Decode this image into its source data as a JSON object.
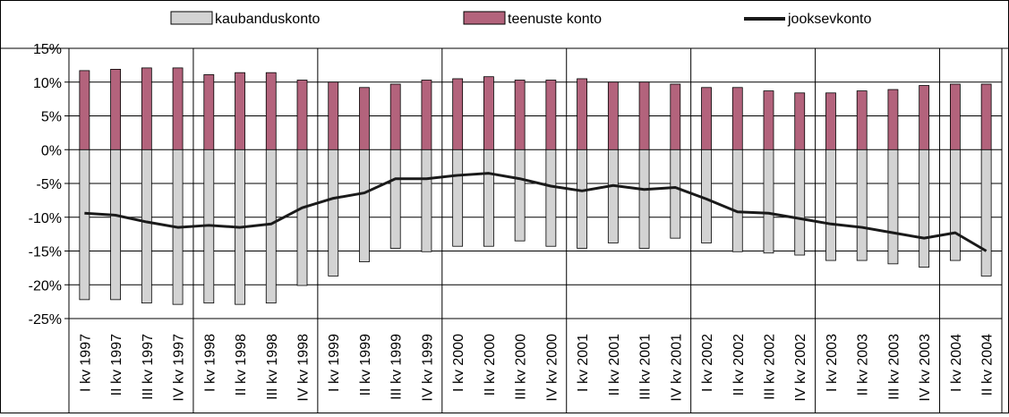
{
  "chart_data": {
    "type": "bar",
    "title": "",
    "xlabel": "",
    "ylabel": "",
    "ylim": [
      -0.25,
      0.15
    ],
    "y_ticks": [
      0.15,
      0.1,
      0.05,
      0.0,
      -0.05,
      -0.1,
      -0.15,
      -0.2,
      -0.25
    ],
    "y_tick_labels": [
      "15%",
      "10%",
      "5%",
      "0%",
      "-5%",
      "-10%",
      "-15%",
      "-20%",
      "-25%"
    ],
    "grid": true,
    "legend_position": "top",
    "categories": [
      "I kv 1997",
      "II kv 1997",
      "III kv 1997",
      "IV kv 1997",
      "I kv 1998",
      "II kv 1998",
      "III kv 1998",
      "IV kv 1998",
      "I kv 1999",
      "II kv 1999",
      "III kv 1999",
      "IV kv 1999",
      "I kv 2000",
      "II kv 2000",
      "III kv 2000",
      "IV kv 2000",
      "I kv 2001",
      "II kv 2001",
      "III kv 2001",
      "IV kv 2001",
      "I kv 2002",
      "II kv 2002",
      "III kv 2002",
      "IV kv 2002",
      "I kv 2003",
      "II kv 2003",
      "III kv 2003",
      "IV kv 2003",
      "I kv 2004",
      "II kv 2004"
    ],
    "series": [
      {
        "name": "kaubanduskonto",
        "type": "bar",
        "color": "#d3d3d3",
        "values": [
          -0.222,
          -0.222,
          -0.227,
          -0.229,
          -0.227,
          -0.229,
          -0.227,
          -0.201,
          -0.187,
          -0.166,
          -0.146,
          -0.151,
          -0.143,
          -0.143,
          -0.135,
          -0.143,
          -0.146,
          -0.138,
          -0.146,
          -0.131,
          -0.138,
          -0.151,
          -0.153,
          -0.156,
          -0.164,
          -0.164,
          -0.169,
          -0.174,
          -0.164,
          -0.187
        ]
      },
      {
        "name": "teenuste konto",
        "type": "bar",
        "color": "#b3637c",
        "values": [
          0.117,
          0.119,
          0.121,
          0.121,
          0.111,
          0.114,
          0.114,
          0.103,
          0.1,
          0.092,
          0.097,
          0.103,
          0.105,
          0.108,
          0.103,
          0.103,
          0.105,
          0.1,
          0.1,
          0.097,
          0.092,
          0.092,
          0.087,
          0.084,
          0.084,
          0.087,
          0.089,
          0.095,
          0.097,
          0.097
        ]
      },
      {
        "name": "jooksevkonto",
        "type": "line",
        "color": "#1a1a1a",
        "values": [
          -0.094,
          -0.097,
          -0.107,
          -0.115,
          -0.112,
          -0.115,
          -0.11,
          -0.086,
          -0.072,
          -0.064,
          -0.043,
          -0.043,
          -0.038,
          -0.035,
          -0.043,
          -0.054,
          -0.061,
          -0.053,
          -0.059,
          -0.056,
          -0.073,
          -0.092,
          -0.094,
          -0.102,
          -0.11,
          -0.115,
          -0.123,
          -0.131,
          -0.123,
          -0.15
        ]
      }
    ]
  }
}
